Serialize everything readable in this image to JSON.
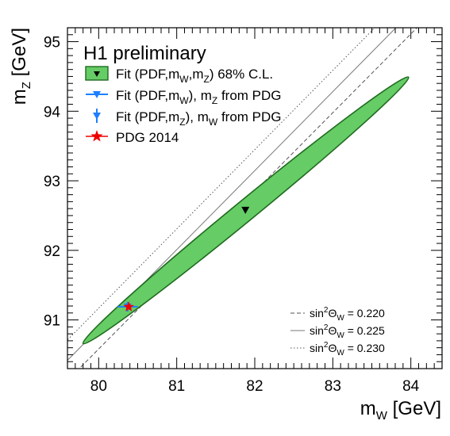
{
  "chart_data": {
    "type": "scatter",
    "title": "",
    "banner": "H1 preliminary",
    "xlabel": {
      "main": "m",
      "sub": "W",
      "rest": " [GeV]"
    },
    "ylabel": {
      "main": "m",
      "sub": "Z",
      "rest": " [GeV]"
    },
    "xlim": [
      79.6,
      84.4
    ],
    "ylim": [
      90.3,
      95.2
    ],
    "xticks": [
      "80",
      "81",
      "82",
      "83",
      "84"
    ],
    "yticks": [
      "91",
      "92",
      "93",
      "94",
      "95"
    ],
    "grid": false,
    "legend_position": "top-left",
    "legend": [
      {
        "parts": [
          "Fit (PDF,m",
          "W",
          ",m",
          "Z",
          ") 68% C.L."
        ]
      },
      {
        "parts": [
          "Fit (PDF,m",
          "W",
          "), m",
          "Z",
          " from PDG"
        ]
      },
      {
        "parts": [
          "Fit (PDF,m",
          "Z",
          "), m",
          "W",
          " from PDG"
        ]
      },
      {
        "parts": [
          "PDG 2014"
        ]
      }
    ],
    "series": [
      {
        "kind": "contour",
        "color": "#66cc66",
        "edge_color": "#1e6a1e",
        "center": [
          81.88,
          92.58
        ],
        "tips": [
          [
            79.8,
            90.66
          ],
          [
            83.97,
            94.49
          ]
        ],
        "half_width_gev": 0.14
      },
      {
        "kind": "point",
        "color": "#000000",
        "x": 81.88,
        "y": 92.58
      },
      {
        "kind": "point_xerr",
        "color": "#1e7fff",
        "x": 80.37,
        "y": 91.19,
        "xerr": 0.13
      },
      {
        "kind": "point_yerr",
        "color": "#1e7fff",
        "x": 80.37,
        "y": 91.19,
        "yerr": 0.07
      },
      {
        "kind": "star",
        "color": "#ee0000",
        "x": 80.385,
        "y": 91.1876
      }
    ],
    "sin2_lines": {
      "label_main": "sin",
      "label_sup": "2",
      "label_theta": "Θ",
      "label_sub": "W",
      "values": [
        {
          "value": "0.220",
          "style": "dashed",
          "color": "#555555"
        },
        {
          "value": "0.225",
          "style": "solid",
          "color": "#777777"
        },
        {
          "value": "0.230",
          "style": "dotted",
          "color": "#555555"
        }
      ]
    }
  }
}
